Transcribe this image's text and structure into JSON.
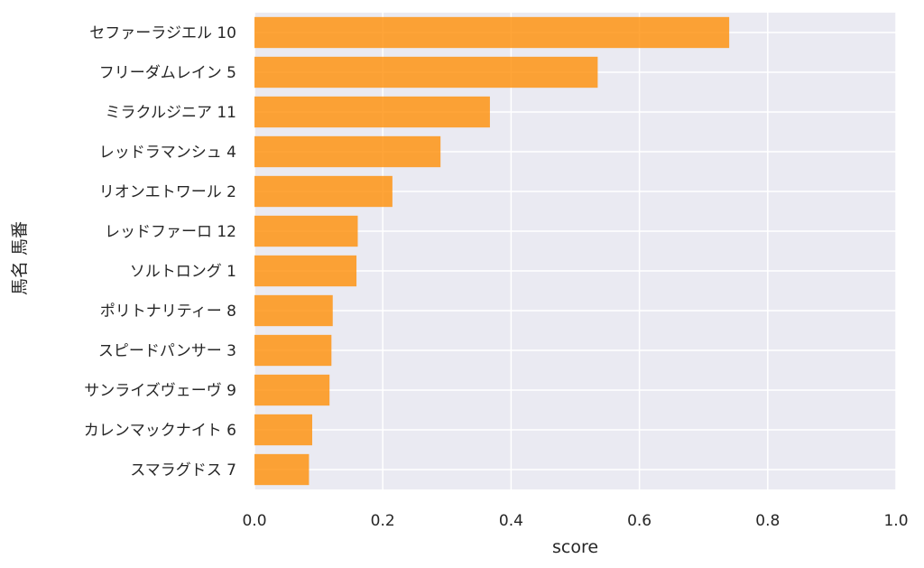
{
  "chart_data": {
    "type": "bar",
    "orientation": "horizontal",
    "categories": [
      "セファーラジエル 10",
      "フリーダムレイン 5",
      "ミラクルジニア 11",
      "レッドラマンシュ 4",
      "リオンエトワール 2",
      "レッドファーロ 12",
      "ソルトロング 1",
      "ポリトナリティー 8",
      "スピードパンサー 3",
      "サンライズヴェーヴ 9",
      "カレンマックナイト 6",
      "スマラグドス 7"
    ],
    "values": [
      0.74,
      0.535,
      0.367,
      0.29,
      0.215,
      0.161,
      0.159,
      0.122,
      0.12,
      0.117,
      0.09,
      0.085
    ],
    "title": "",
    "xlabel": "score",
    "ylabel": "馬名 馬番",
    "xlim": [
      0,
      1.0
    ],
    "xticks": [
      "0.0",
      "0.2",
      "0.4",
      "0.6",
      "0.8",
      "1.0"
    ],
    "xtick_values": [
      0,
      0.2,
      0.4,
      0.6,
      0.8,
      1.0
    ],
    "grid": true,
    "bar_color": "#ff8c00",
    "background_color": "#eaeaf2",
    "grid_color": "#ffffff"
  }
}
